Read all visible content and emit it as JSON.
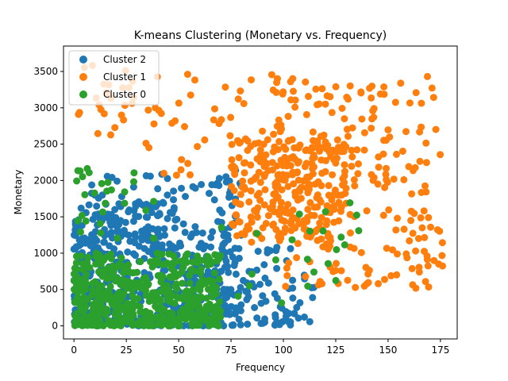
{
  "chart_data": {
    "type": "scatter",
    "title": "K-means Clustering (Monetary vs. Frequency)",
    "xlabel": "Frequency",
    "ylabel": "Monetary",
    "xlim": [
      -5,
      183
    ],
    "ylim": [
      -180,
      3850
    ],
    "xticks": [
      0,
      25,
      50,
      75,
      100,
      125,
      150,
      175
    ],
    "yticks": [
      0,
      500,
      1000,
      1500,
      2000,
      2500,
      3000,
      3500
    ],
    "grid": false,
    "legend_position": "upper-left",
    "series": [
      {
        "name": "Cluster 2",
        "color": "#1f77b4",
        "description_ranges": {
          "x": [
            0,
            115
          ],
          "y": [
            0,
            2250
          ]
        }
      },
      {
        "name": "Cluster 1",
        "color": "#ff7f0e",
        "description_ranges": {
          "x": [
            0,
            176
          ],
          "y": [
            200,
            3700
          ]
        }
      },
      {
        "name": "Cluster 0",
        "color": "#2ca02c",
        "description_ranges": {
          "x": [
            0,
            138
          ],
          "y": [
            0,
            2700
          ]
        }
      }
    ]
  }
}
